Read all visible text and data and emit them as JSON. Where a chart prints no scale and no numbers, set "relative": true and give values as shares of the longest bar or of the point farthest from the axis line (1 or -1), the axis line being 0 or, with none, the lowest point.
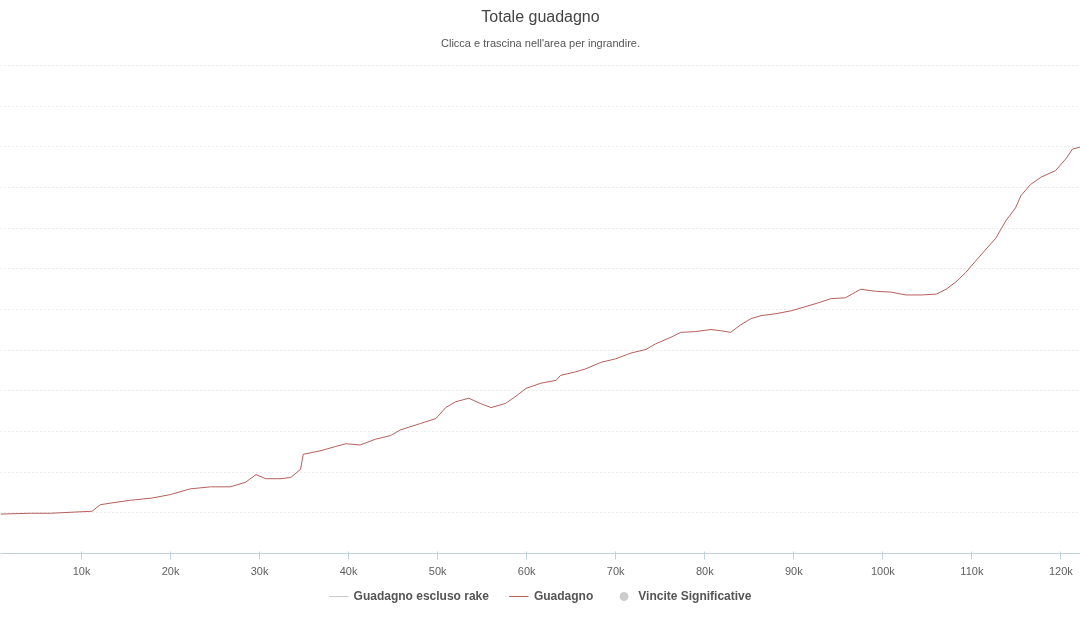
{
  "chart_data": {
    "type": "line",
    "title": "Totale guadagno",
    "subtitle": "Clicca e trascina nell'area per ingrandire.",
    "relative": true,
    "grid": "y",
    "legend": "bottom",
    "marker": "none",
    "line_style": "solid",
    "xlim": [
      900,
      122200
    ],
    "xticks": [
      {
        "value": 10000,
        "label": "10k"
      },
      {
        "value": 20000,
        "label": "20k"
      },
      {
        "value": 30000,
        "label": "30k"
      },
      {
        "value": 40000,
        "label": "40k"
      },
      {
        "value": 50000,
        "label": "50k"
      },
      {
        "value": 60000,
        "label": "60k"
      },
      {
        "value": 70000,
        "label": "70k"
      },
      {
        "value": 80000,
        "label": "80k"
      },
      {
        "value": 90000,
        "label": "90k"
      },
      {
        "value": 100000,
        "label": "100k"
      },
      {
        "value": 110000,
        "label": "110k"
      },
      {
        "value": 120000,
        "label": "120k"
      }
    ],
    "x": [
      900,
      4300,
      6500,
      11200,
      12100,
      13300,
      15500,
      17800,
      20000,
      22200,
      24500,
      26700,
      28400,
      29600,
      30700,
      32400,
      33500,
      34600,
      34900,
      36900,
      38500,
      39700,
      41300,
      43000,
      44700,
      45800,
      48100,
      49800,
      50900,
      52000,
      53500,
      54800,
      56000,
      57600,
      58800,
      59900,
      61600,
      63300,
      63800,
      65500,
      66600,
      68300,
      70000,
      71700,
      73400,
      74500,
      76200,
      77300,
      79000,
      80700,
      81800,
      82900,
      84000,
      85200,
      86300,
      88000,
      89700,
      90800,
      92500,
      94200,
      95800,
      97500,
      99200,
      100900,
      102600,
      104300,
      106000,
      107100,
      108200,
      109300,
      110400,
      111600,
      112700,
      113800,
      114900,
      115500,
      116600,
      117800,
      119400,
      120600,
      121300,
      122200
    ],
    "series": [
      {
        "name": "Guadagno escluso rake",
        "color": "#cccccc",
        "values": [
          null,
          null,
          null,
          null,
          null,
          null,
          null,
          null,
          null,
          null,
          null,
          null,
          null,
          null,
          null,
          null,
          null,
          null,
          null,
          null,
          null,
          null,
          null,
          null,
          null,
          null,
          null,
          null,
          null,
          null,
          null,
          null,
          null,
          null,
          null,
          null,
          null,
          null,
          null,
          null,
          null,
          null,
          null,
          null,
          null,
          null,
          null,
          null,
          null,
          null,
          null,
          null,
          null,
          null,
          null,
          null,
          null,
          null,
          null,
          null,
          null,
          null,
          null,
          null,
          null,
          null,
          null,
          null,
          null,
          null,
          null,
          null,
          null,
          null,
          null,
          null,
          null,
          null,
          null,
          null,
          null,
          null
        ]
      },
      {
        "name": "Guadagno",
        "color": "#b5605c",
        "values": [
          0.097,
          0.099,
          0.099,
          0.104,
          0.12,
          0.124,
          0.131,
          0.136,
          0.145,
          0.159,
          0.164,
          0.164,
          0.175,
          0.194,
          0.184,
          0.184,
          0.187,
          0.207,
          0.244,
          0.253,
          0.263,
          0.27,
          0.267,
          0.281,
          0.29,
          0.304,
          0.32,
          0.332,
          0.359,
          0.373,
          0.382,
          0.369,
          0.359,
          0.369,
          0.387,
          0.406,
          0.419,
          0.426,
          0.438,
          0.447,
          0.454,
          0.47,
          0.479,
          0.493,
          0.502,
          0.516,
          0.532,
          0.544,
          0.546,
          0.551,
          0.548,
          0.544,
          0.562,
          0.578,
          0.585,
          0.59,
          0.597,
          0.604,
          0.615,
          0.627,
          0.629,
          0.65,
          0.645,
          0.643,
          0.636,
          0.636,
          0.638,
          0.65,
          0.668,
          0.691,
          0.719,
          0.749,
          0.776,
          0.818,
          0.85,
          0.88,
          0.908,
          0.926,
          0.942,
          0.972,
          0.995,
          1.0
        ]
      },
      {
        "name": "Vincite Significative",
        "type": "scatter",
        "color": "#cccccc",
        "values": [
          null,
          null,
          null,
          null,
          null,
          null,
          null,
          null,
          null,
          null,
          null,
          null,
          null,
          null,
          null,
          null,
          null,
          null,
          null,
          null,
          null,
          null,
          null,
          null,
          null,
          null,
          null,
          null,
          null,
          null,
          null,
          null,
          null,
          null,
          null,
          null,
          null,
          null,
          null,
          null,
          null,
          null,
          null,
          null,
          null,
          null,
          null,
          null,
          null,
          null,
          null,
          null,
          null,
          null,
          null,
          null,
          null,
          null,
          null,
          null,
          null,
          null,
          null,
          null,
          null,
          null,
          null,
          null,
          null,
          null,
          null,
          null,
          null,
          null,
          null,
          null,
          null,
          null,
          null,
          null,
          null,
          null
        ]
      }
    ]
  }
}
